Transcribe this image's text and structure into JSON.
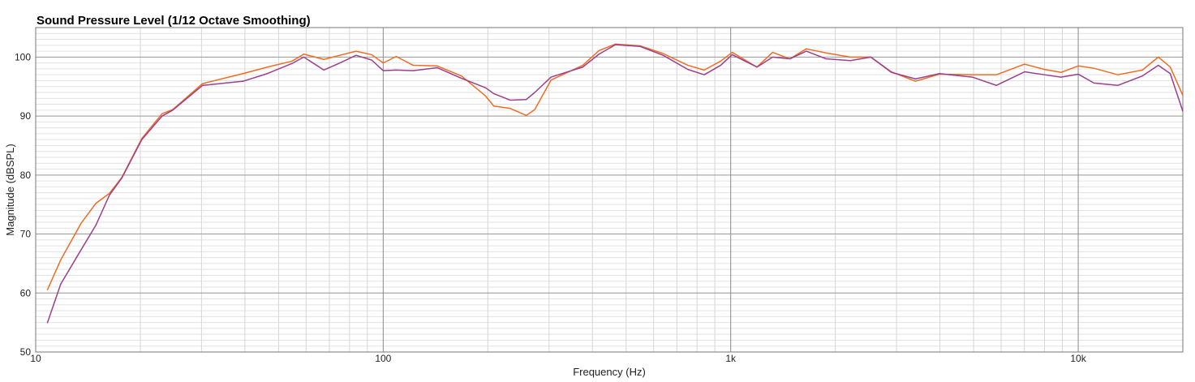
{
  "chart_data": {
    "type": "line",
    "title": "Sound Pressure Level (1/12 Octave Smoothing)",
    "x_label": "Frequency (Hz)",
    "y_label": "Magnitude (dBSPL)",
    "x_scale": "log",
    "grid": true,
    "minor_grid": true,
    "xlim": [
      10,
      20000
    ],
    "ylim": [
      50,
      105
    ],
    "xticks": [
      10,
      100,
      {
        "value": 1000,
        "label": "1k"
      },
      {
        "value": 10000,
        "label": "10k"
      }
    ],
    "yticks": [
      50,
      60,
      70,
      80,
      90,
      100
    ],
    "x": [
      10.8,
      11.8,
      13.5,
      14.9,
      16.3,
      17.7,
      20.2,
      23.1,
      24.8,
      30.2,
      39.5,
      46.4,
      54.6,
      59.1,
      67.5,
      75,
      83.5,
      92.6,
      100,
      109,
      122,
      143,
      168,
      197,
      208,
      232,
      258,
      273,
      304,
      375,
      418,
      466,
      549,
      639,
      753,
      839,
      935,
      1010,
      1190,
      1320,
      1480,
      1650,
      1880,
      2210,
      2530,
      2900,
      3400,
      3990,
      4960,
      5810,
      7010,
      8000,
      8920,
      10000,
      11100,
      13000,
      15300,
      17000,
      18400,
      20000
    ],
    "series": [
      {
        "color": "#f26b21",
        "values": [
          60.5,
          65.6,
          71.8,
          75.2,
          76.9,
          79.6,
          86.2,
          90.4,
          91.1,
          95.5,
          97.2,
          98.3,
          99.3,
          100.5,
          99.6,
          100.3,
          101,
          100.4,
          99,
          100.1,
          98.6,
          98.5,
          96.8,
          93.4,
          91.7,
          91.3,
          90.1,
          91.1,
          96.1,
          98.6,
          101.1,
          102.2,
          101.9,
          100.6,
          98.6,
          97.8,
          99.3,
          100.8,
          98.3,
          100.8,
          99.7,
          101.4,
          100.7,
          100,
          100,
          97.5,
          95.9,
          97.1,
          97,
          97,
          98.8,
          97.9,
          97.4,
          98.5,
          98.1,
          97,
          97.8,
          100,
          98.3,
          93.5
        ]
      },
      {
        "color": "#9b3f8e",
        "values": [
          54.9,
          61.5,
          67.3,
          71.5,
          76.6,
          79.5,
          86,
          90,
          91,
          95.2,
          95.9,
          97.2,
          98.9,
          100,
          97.8,
          99,
          100.3,
          99.5,
          97.7,
          97.8,
          97.7,
          98.2,
          96.4,
          94.8,
          93.8,
          92.7,
          92.8,
          94,
          96.6,
          98.3,
          100.5,
          102.1,
          101.8,
          100.3,
          97.9,
          97,
          98.6,
          100.4,
          98.3,
          100,
          99.7,
          101,
          99.7,
          99.4,
          100,
          97.4,
          96.3,
          97.2,
          96.6,
          95.2,
          97.5,
          97,
          96.6,
          97.1,
          95.6,
          95.2,
          96.8,
          98.6,
          97.2,
          90.8
        ]
      }
    ]
  }
}
